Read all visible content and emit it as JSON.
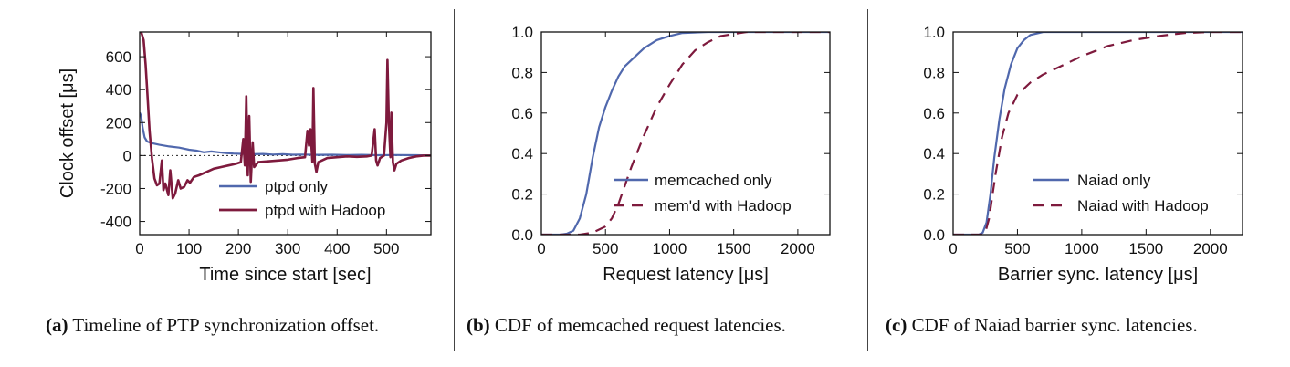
{
  "panels": [
    {
      "caption_tag": "(a)",
      "caption_text": "Timeline of PTP synchronization offset.",
      "legend": [
        "ptpd only",
        "ptpd with Hadoop"
      ]
    },
    {
      "caption_tag": "(b)",
      "caption_text": "CDF of memcached request latencies.",
      "legend": [
        "memcached only",
        "mem'd with Hadoop"
      ]
    },
    {
      "caption_tag": "(c)",
      "caption_text": "CDF of Naiad barrier sync. latencies.",
      "legend": [
        "Naiad only",
        "Naiad with Hadoop"
      ]
    }
  ],
  "colors": {
    "baseline": "#5068ad",
    "hadoop": "#7e1a3d"
  },
  "chart_data": [
    {
      "type": "line",
      "xlabel": "Time since start [sec]",
      "ylabel": "Clock offset [μs]",
      "xlim": [
        0,
        590
      ],
      "ylim": [
        -480,
        750
      ],
      "xticks": [
        0,
        100,
        200,
        300,
        400,
        500
      ],
      "yticks": [
        -400,
        -200,
        0,
        200,
        400,
        600
      ],
      "zero_reference_line": true,
      "grid": false,
      "legend_position": "bottom-right",
      "series": [
        {
          "name": "ptpd only",
          "style": "solid",
          "points": [
            [
              0,
              260
            ],
            [
              3,
              240
            ],
            [
              6,
              170
            ],
            [
              10,
              110
            ],
            [
              15,
              85
            ],
            [
              25,
              75
            ],
            [
              40,
              65
            ],
            [
              60,
              55
            ],
            [
              80,
              48
            ],
            [
              100,
              35
            ],
            [
              115,
              30
            ],
            [
              130,
              20
            ],
            [
              145,
              25
            ],
            [
              160,
              20
            ],
            [
              175,
              15
            ],
            [
              190,
              12
            ],
            [
              210,
              10
            ],
            [
              230,
              8
            ],
            [
              250,
              10
            ],
            [
              270,
              6
            ],
            [
              290,
              8
            ],
            [
              310,
              5
            ],
            [
              330,
              6
            ],
            [
              360,
              4
            ],
            [
              390,
              5
            ],
            [
              420,
              3
            ],
            [
              450,
              4
            ],
            [
              480,
              2
            ],
            [
              520,
              3
            ],
            [
              560,
              2
            ],
            [
              590,
              0
            ]
          ]
        },
        {
          "name": "ptpd with Hadoop",
          "style": "solid-thick",
          "points": [
            [
              0,
              780
            ],
            [
              8,
              700
            ],
            [
              12,
              550
            ],
            [
              16,
              350
            ],
            [
              20,
              150
            ],
            [
              25,
              -20
            ],
            [
              30,
              -140
            ],
            [
              35,
              -180
            ],
            [
              40,
              -170
            ],
            [
              45,
              -30
            ],
            [
              48,
              -210
            ],
            [
              52,
              -170
            ],
            [
              58,
              -240
            ],
            [
              62,
              -90
            ],
            [
              67,
              -260
            ],
            [
              72,
              -230
            ],
            [
              78,
              -150
            ],
            [
              83,
              -200
            ],
            [
              90,
              -190
            ],
            [
              97,
              -150
            ],
            [
              102,
              -165
            ],
            [
              110,
              -130
            ],
            [
              120,
              -120
            ],
            [
              135,
              -100
            ],
            [
              150,
              -80
            ],
            [
              165,
              -70
            ],
            [
              180,
              -60
            ],
            [
              195,
              -50
            ],
            [
              205,
              -40
            ],
            [
              210,
              100
            ],
            [
              213,
              -60
            ],
            [
              216,
              360
            ],
            [
              219,
              -120
            ],
            [
              222,
              240
            ],
            [
              225,
              -160
            ],
            [
              229,
              80
            ],
            [
              232,
              -70
            ],
            [
              240,
              -40
            ],
            [
              260,
              -35
            ],
            [
              280,
              -30
            ],
            [
              300,
              -25
            ],
            [
              320,
              -15
            ],
            [
              335,
              -10
            ],
            [
              340,
              150
            ],
            [
              343,
              60
            ],
            [
              346,
              160
            ],
            [
              350,
              -40
            ],
            [
              352,
              410
            ],
            [
              355,
              -50
            ],
            [
              358,
              -100
            ],
            [
              362,
              -40
            ],
            [
              380,
              -15
            ],
            [
              400,
              -10
            ],
            [
              420,
              -5
            ],
            [
              440,
              -8
            ],
            [
              460,
              -5
            ],
            [
              470,
              0
            ],
            [
              476,
              160
            ],
            [
              479,
              -30
            ],
            [
              482,
              -60
            ],
            [
              487,
              -15
            ],
            [
              495,
              0
            ],
            [
              500,
              200
            ],
            [
              502,
              580
            ],
            [
              505,
              190
            ],
            [
              508,
              -10
            ],
            [
              510,
              260
            ],
            [
              513,
              -40
            ],
            [
              516,
              -90
            ],
            [
              520,
              -50
            ],
            [
              530,
              -30
            ],
            [
              545,
              -15
            ],
            [
              560,
              -5
            ],
            [
              575,
              0
            ],
            [
              590,
              0
            ]
          ]
        }
      ]
    },
    {
      "type": "line",
      "xlabel": "Request latency [μs]",
      "ylabel": "",
      "xlim": [
        0,
        2250
      ],
      "ylim": [
        0,
        1
      ],
      "xticks": [
        0,
        500,
        1000,
        1500,
        2000
      ],
      "yticks": [
        0.0,
        0.2,
        0.4,
        0.6,
        0.8,
        1.0
      ],
      "grid": false,
      "legend_position": "lower-right",
      "series": [
        {
          "name": "memcached only",
          "style": "solid",
          "points": [
            [
              0,
              0
            ],
            [
              150,
              0
            ],
            [
              200,
              0.005
            ],
            [
              250,
              0.02
            ],
            [
              300,
              0.08
            ],
            [
              350,
              0.2
            ],
            [
              400,
              0.38
            ],
            [
              450,
              0.53
            ],
            [
              500,
              0.63
            ],
            [
              550,
              0.71
            ],
            [
              600,
              0.78
            ],
            [
              650,
              0.83
            ],
            [
              700,
              0.86
            ],
            [
              750,
              0.89
            ],
            [
              800,
              0.92
            ],
            [
              900,
              0.96
            ],
            [
              1000,
              0.98
            ],
            [
              1100,
              0.995
            ],
            [
              1300,
              1.0
            ],
            [
              2250,
              1.0
            ]
          ]
        },
        {
          "name": "mem'd with Hadoop",
          "style": "dashed",
          "points": [
            [
              0,
              0
            ],
            [
              300,
              0
            ],
            [
              400,
              0.01
            ],
            [
              500,
              0.04
            ],
            [
              550,
              0.08
            ],
            [
              600,
              0.15
            ],
            [
              650,
              0.24
            ],
            [
              700,
              0.33
            ],
            [
              750,
              0.41
            ],
            [
              800,
              0.49
            ],
            [
              850,
              0.56
            ],
            [
              900,
              0.63
            ],
            [
              1000,
              0.74
            ],
            [
              1100,
              0.84
            ],
            [
              1200,
              0.91
            ],
            [
              1300,
              0.95
            ],
            [
              1400,
              0.98
            ],
            [
              1500,
              0.99
            ],
            [
              1600,
              1.0
            ],
            [
              2250,
              1.0
            ]
          ]
        }
      ]
    },
    {
      "type": "line",
      "xlabel": "Barrier sync. latency [μs]",
      "ylabel": "",
      "xlim": [
        0,
        2250
      ],
      "ylim": [
        0,
        1
      ],
      "xticks": [
        0,
        500,
        1000,
        1500,
        2000
      ],
      "yticks": [
        0.0,
        0.2,
        0.4,
        0.6,
        0.8,
        1.0
      ],
      "grid": false,
      "legend_position": "lower-right",
      "series": [
        {
          "name": "Naiad only",
          "style": "solid",
          "points": [
            [
              0,
              0
            ],
            [
              200,
              0
            ],
            [
              230,
              0.01
            ],
            [
              260,
              0.06
            ],
            [
              290,
              0.2
            ],
            [
              320,
              0.38
            ],
            [
              360,
              0.57
            ],
            [
              400,
              0.72
            ],
            [
              450,
              0.84
            ],
            [
              500,
              0.92
            ],
            [
              550,
              0.96
            ],
            [
              600,
              0.985
            ],
            [
              700,
              1.0
            ],
            [
              2250,
              1.0
            ]
          ]
        },
        {
          "name": "Naiad with Hadoop",
          "style": "dashed",
          "points": [
            [
              0,
              0
            ],
            [
              220,
              0
            ],
            [
              250,
              0.01
            ],
            [
              280,
              0.08
            ],
            [
              300,
              0.17
            ],
            [
              330,
              0.3
            ],
            [
              380,
              0.48
            ],
            [
              430,
              0.6
            ],
            [
              500,
              0.69
            ],
            [
              600,
              0.75
            ],
            [
              700,
              0.79
            ],
            [
              800,
              0.82
            ],
            [
              1000,
              0.88
            ],
            [
              1200,
              0.93
            ],
            [
              1400,
              0.96
            ],
            [
              1600,
              0.98
            ],
            [
              1800,
              0.995
            ],
            [
              2000,
              1.0
            ],
            [
              2250,
              1.0
            ]
          ]
        }
      ]
    }
  ]
}
